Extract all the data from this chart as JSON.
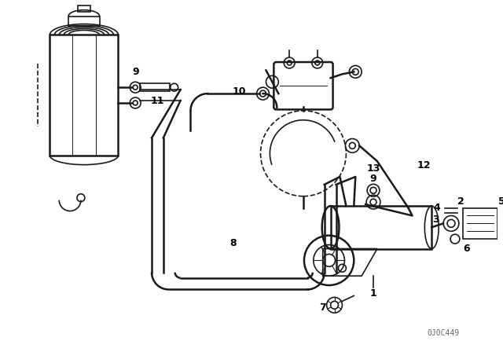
{
  "bg_color": "#ffffff",
  "line_color": "#1a1a1a",
  "watermark": "0J0C449",
  "fig_w": 6.4,
  "fig_h": 4.48,
  "dpi": 100
}
